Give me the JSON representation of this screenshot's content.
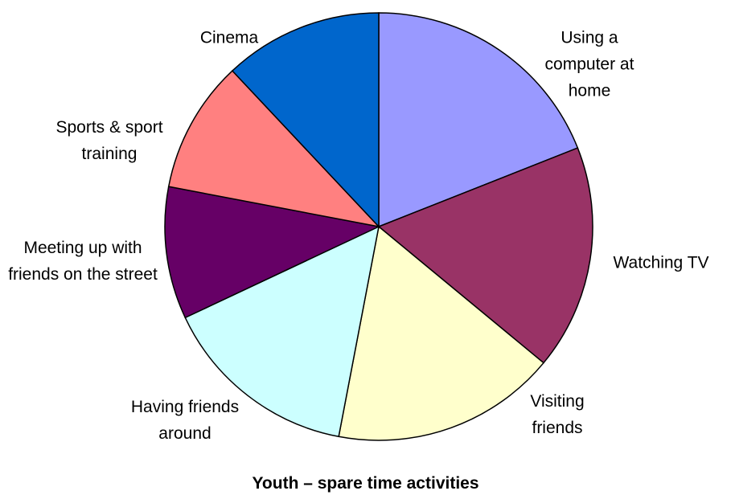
{
  "chart_data": {
    "type": "pie",
    "title": "Youth – spare time activities",
    "categories": [
      "Using a computer at home",
      "Watching TV",
      "Visiting friends",
      "Having friends around",
      "Meeting up with friends on the street",
      "Sports & sport training",
      "Cinema"
    ],
    "values": [
      19,
      17,
      17,
      15,
      10,
      10,
      12
    ],
    "colors": [
      "#9999ff",
      "#993366",
      "#ffffcc",
      "#ccffff",
      "#660066",
      "#ff8080",
      "#0066cc"
    ]
  }
}
